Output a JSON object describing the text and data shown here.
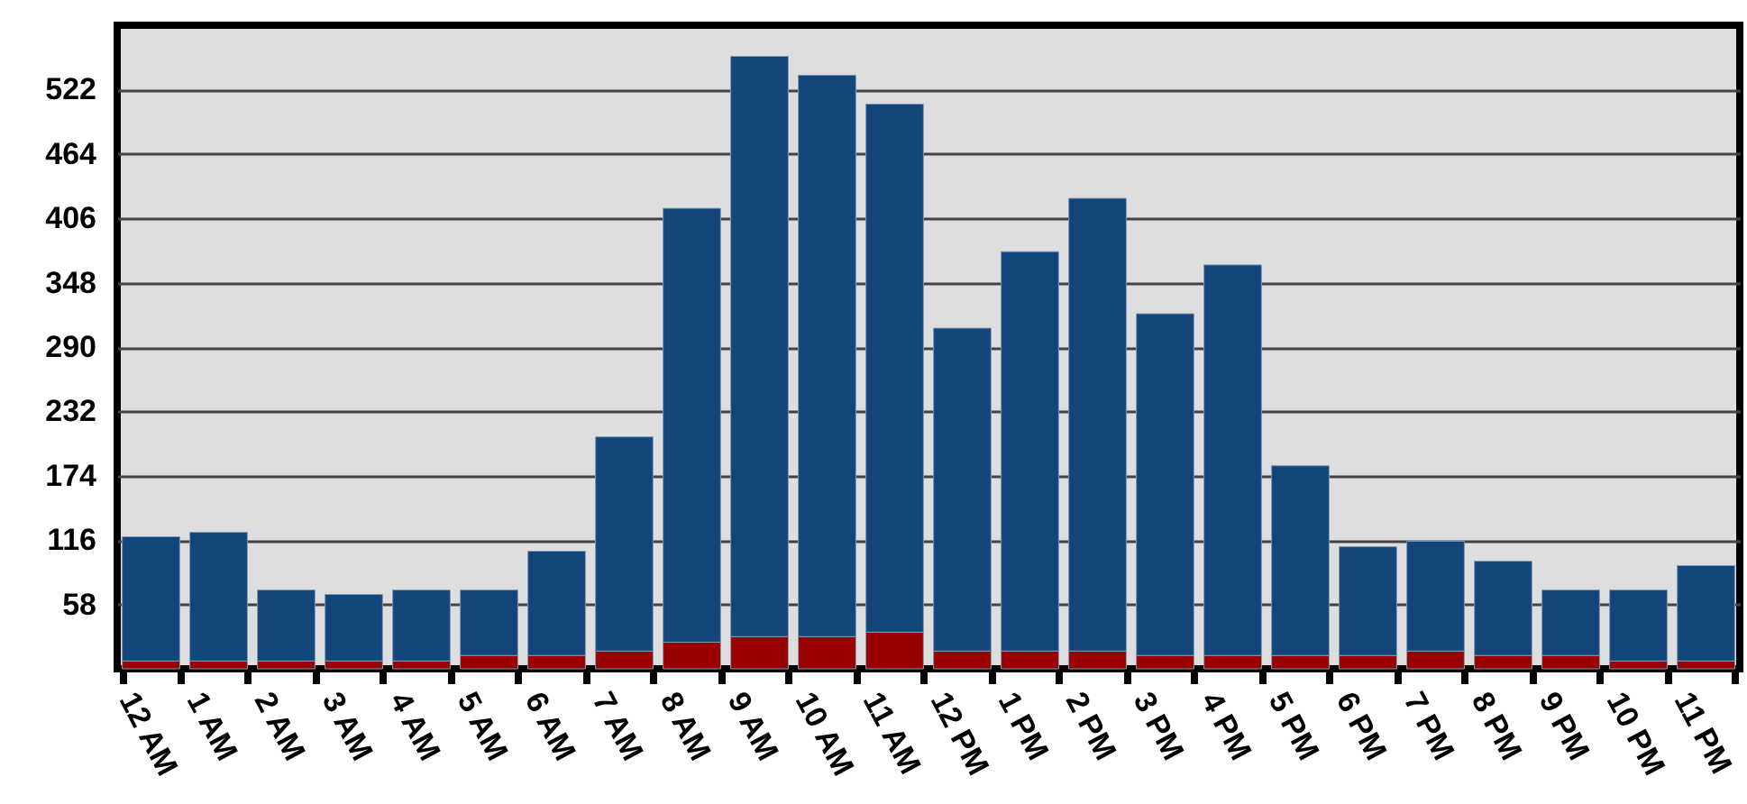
{
  "chart_data": {
    "type": "bar",
    "stacked": true,
    "categories": [
      "12 AM",
      "1 AM",
      "2 AM",
      "3 AM",
      "4 AM",
      "5 AM",
      "6 AM",
      "7 AM",
      "8 AM",
      "9 AM",
      "10 AM",
      "11 AM",
      "12 PM",
      "1 PM",
      "2 PM",
      "3 PM",
      "4 PM",
      "5 PM",
      "6 PM",
      "7 PM",
      "8 PM",
      "9 PM",
      "10 PM",
      "11 PM"
    ],
    "series": [
      {
        "color": "#990000",
        "values": [
          7,
          7,
          7,
          7,
          7,
          12,
          12,
          16,
          24,
          29,
          29,
          33,
          16,
          16,
          16,
          12,
          12,
          12,
          12,
          16,
          12,
          12,
          7,
          7
        ]
      },
      {
        "color": "#13457a",
        "values": [
          112,
          116,
          64,
          60,
          64,
          59,
          94,
          193,
          391,
          523,
          506,
          476,
          291,
          360,
          408,
          308,
          352,
          171,
          98,
          99,
          85,
          59,
          64,
          86
        ]
      }
    ],
    "ylim": [
      0,
      580
    ],
    "yticks": [
      58,
      116,
      174,
      232,
      290,
      348,
      406,
      464,
      522
    ],
    "grid": "y"
  }
}
